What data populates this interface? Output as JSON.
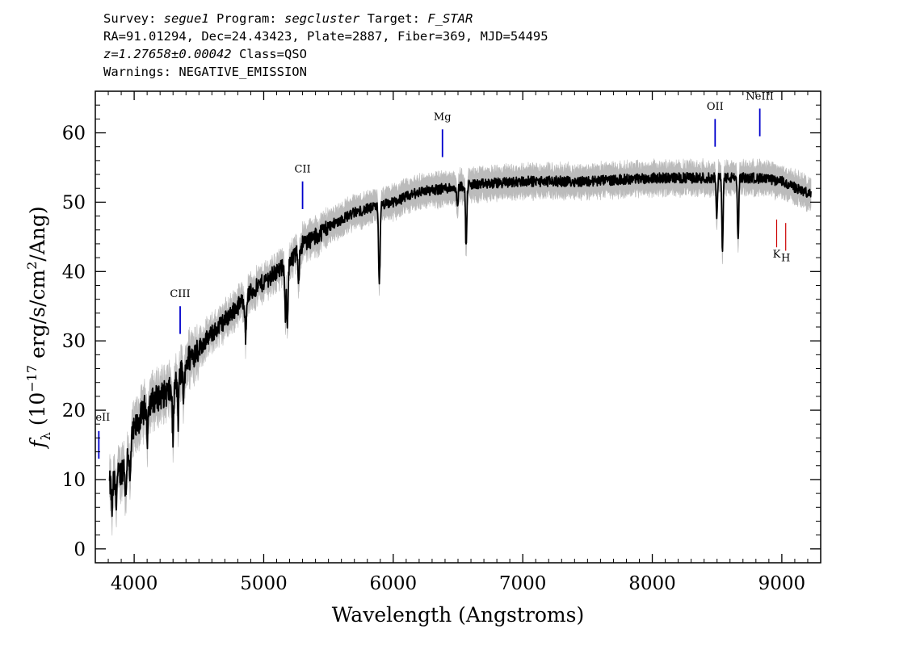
{
  "header": {
    "line1": {
      "survey_label": "Survey: ",
      "survey": "segue1",
      "program_label": " Program: ",
      "program": "segcluster",
      "target_label": " Target: ",
      "target": "F_STAR"
    },
    "line2": "RA=91.01294, Dec=24.43423, Plate=2887, Fiber=369, MJD=54495",
    "line3": {
      "z": "z=1.27658±0.00042",
      "class": " Class=QSO"
    },
    "line4": "Warnings: NEGATIVE_EMISSION"
  },
  "chart_data": {
    "type": "line",
    "xlabel": "Wavelength (Angstroms)",
    "ylabel_parts": {
      "f": "f",
      "sub": "λ",
      "pre": " (10",
      "exp": "−17",
      "mid": " erg/s/cm",
      "exp2": "2",
      "post": "/Ang)"
    },
    "xlim": [
      3700,
      9300
    ],
    "ylim": [
      -2,
      66
    ],
    "x_ticks": [
      4000,
      5000,
      6000,
      7000,
      8000,
      9000
    ],
    "y_ticks": [
      0,
      10,
      20,
      30,
      40,
      50,
      60
    ],
    "colors": {
      "flux": "#000000",
      "error": "#bbbbbb",
      "emission": "#0000cc",
      "absorption": "#cc0000"
    },
    "continuum_knots": [
      [
        3800,
        9
      ],
      [
        3900,
        11
      ],
      [
        4000,
        17
      ],
      [
        4100,
        21
      ],
      [
        4200,
        22
      ],
      [
        4300,
        23
      ],
      [
        4400,
        27
      ],
      [
        4500,
        29
      ],
      [
        4600,
        31
      ],
      [
        4700,
        33
      ],
      [
        4800,
        35
      ],
      [
        4900,
        37
      ],
      [
        5000,
        38.5
      ],
      [
        5100,
        40
      ],
      [
        5200,
        41
      ],
      [
        5300,
        44
      ],
      [
        5400,
        45
      ],
      [
        5500,
        46.5
      ],
      [
        5600,
        47.5
      ],
      [
        5700,
        48.5
      ],
      [
        5800,
        49
      ],
      [
        5900,
        49.5
      ],
      [
        6000,
        50
      ],
      [
        6200,
        51.5
      ],
      [
        6400,
        52
      ],
      [
        6600,
        52.5
      ],
      [
        7000,
        53
      ],
      [
        7500,
        53
      ],
      [
        8000,
        53.5
      ],
      [
        8500,
        53.5
      ],
      [
        8800,
        53.5
      ],
      [
        9000,
        53
      ],
      [
        9230,
        51
      ]
    ],
    "absorption_features": [
      [
        3830,
        4
      ],
      [
        3860,
        3
      ],
      [
        3935,
        6
      ],
      [
        3968,
        6
      ],
      [
        4101,
        5
      ],
      [
        4300,
        7
      ],
      [
        4340,
        6
      ],
      [
        4383,
        5
      ],
      [
        4861,
        6
      ],
      [
        5167,
        7
      ],
      [
        5183,
        8
      ],
      [
        5270,
        4
      ],
      [
        5890,
        7
      ],
      [
        5896,
        6
      ],
      [
        6495,
        3
      ],
      [
        6563,
        9
      ],
      [
        8498,
        6
      ],
      [
        8542,
        10
      ],
      [
        8662,
        9
      ]
    ],
    "emission_lines": [
      {
        "label": "eII",
        "x": 3727,
        "y_line": [
          13,
          17
        ],
        "y_label": 18.5,
        "anchor": "start"
      },
      {
        "label": "CIII",
        "x": 4355,
        "y_line": [
          31,
          35
        ],
        "y_label": 36.3,
        "anchor": "middle"
      },
      {
        "label": "CII",
        "x": 5300,
        "y_line": [
          49,
          53
        ],
        "y_label": 54.3,
        "anchor": "middle"
      },
      {
        "label": "Mg",
        "x": 6380,
        "y_line": [
          56.5,
          60.5
        ],
        "y_label": 61.8,
        "anchor": "middle"
      },
      {
        "label": "OII",
        "x": 8485,
        "y_line": [
          58,
          62
        ],
        "y_label": 63.3,
        "anchor": "middle"
      },
      {
        "label": "NeIII",
        "x": 8830,
        "y_line": [
          59.5,
          63.5
        ],
        "y_label": 64.8,
        "anchor": "middle"
      }
    ],
    "absorption_lines": [
      {
        "label": "K",
        "x": 8960,
        "y_line": [
          43.5,
          47.5
        ],
        "y_label": 42
      },
      {
        "label": "H",
        "x": 9030,
        "y_line": [
          43,
          47
        ],
        "y_label": 41.5
      }
    ]
  }
}
